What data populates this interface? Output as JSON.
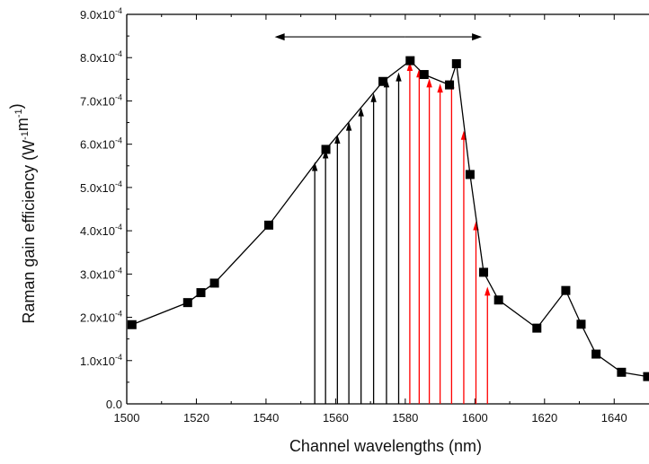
{
  "chart_data": {
    "type": "line",
    "title": "",
    "xlabel": "Channel wavelengths (nm)",
    "ylabel": "Raman gain efficiency (W^-1m^-1)",
    "xlim": [
      1500,
      1650
    ],
    "ylim": [
      0,
      0.0009
    ],
    "grid": false,
    "x_ticks": [
      1500,
      1520,
      1540,
      1560,
      1580,
      1600,
      1620,
      1640
    ],
    "y_ticks": [
      {
        "value": 0.0,
        "label": "0.0"
      },
      {
        "value": 0.0001,
        "label": "1.0x10-4"
      },
      {
        "value": 0.0002,
        "label": "2.0x10-4"
      },
      {
        "value": 0.0003,
        "label": "3.0x10-4"
      },
      {
        "value": 0.0004,
        "label": "4.0x10-4"
      },
      {
        "value": 0.0005,
        "label": "5.0x10-4"
      },
      {
        "value": 0.0006,
        "label": "6.0x10-4"
      },
      {
        "value": 0.0007,
        "label": "7.0x10-4"
      },
      {
        "value": 0.0008,
        "label": "8.0x10-4"
      },
      {
        "value": 0.0009,
        "label": "9.0x10-4"
      }
    ],
    "series": [
      {
        "marker": "square",
        "color": "#000000",
        "points": [
          [
            1501.5,
            0.000183
          ],
          [
            1517.5,
            0.000234
          ],
          [
            1521.3,
            0.000257
          ],
          [
            1525.2,
            0.000279
          ],
          [
            1540.8,
            0.000413
          ],
          [
            1557.2,
            0.000588
          ],
          [
            1573.6,
            0.000745
          ],
          [
            1581.4,
            0.000793
          ],
          [
            1585.4,
            0.000761
          ],
          [
            1592.7,
            0.000737
          ],
          [
            1594.7,
            0.000786
          ],
          [
            1598.6,
            0.00053
          ],
          [
            1602.5,
            0.000304
          ],
          [
            1606.8,
            0.00024
          ],
          [
            1617.8,
            0.000175
          ],
          [
            1626.1,
            0.000262
          ],
          [
            1630.5,
            0.000184
          ],
          [
            1634.8,
            0.000115
          ],
          [
            1642.1,
            7.3e-05
          ],
          [
            1649.6,
            6.3e-05
          ]
        ]
      }
    ],
    "channel_arrows": [
      {
        "wavelength": 1554.0,
        "gain": 0.000559,
        "color": "#000000"
      },
      {
        "wavelength": 1557.1,
        "gain": 0.000588,
        "color": "#000000"
      },
      {
        "wavelength": 1560.5,
        "gain": 0.000622,
        "color": "#000000"
      },
      {
        "wavelength": 1563.8,
        "gain": 0.000652,
        "color": "#000000"
      },
      {
        "wavelength": 1567.3,
        "gain": 0.000685,
        "color": "#000000"
      },
      {
        "wavelength": 1570.9,
        "gain": 0.000718,
        "color": "#000000"
      },
      {
        "wavelength": 1574.6,
        "gain": 0.000752,
        "color": "#000000"
      },
      {
        "wavelength": 1578.1,
        "gain": 0.000766,
        "color": "#000000"
      },
      {
        "wavelength": 1581.3,
        "gain": 0.00079,
        "color": "#ff0000"
      },
      {
        "wavelength": 1584.0,
        "gain": 0.000775,
        "color": "#ff0000"
      },
      {
        "wavelength": 1586.9,
        "gain": 0.000752,
        "color": "#ff0000"
      },
      {
        "wavelength": 1590.0,
        "gain": 0.00074,
        "color": "#ff0000"
      },
      {
        "wavelength": 1593.3,
        "gain": 0.00075,
        "color": "#ff0000"
      },
      {
        "wavelength": 1596.8,
        "gain": 0.000631,
        "color": "#ff0000"
      },
      {
        "wavelength": 1600.3,
        "gain": 0.000422,
        "color": "#ff0000"
      },
      {
        "wavelength": 1603.6,
        "gain": 0.000271,
        "color": "#ff0000"
      }
    ],
    "direction_arrows": [
      {
        "from": 1580.0,
        "to": 1542.5,
        "gain": 0.000848,
        "color": "#000000"
      },
      {
        "from": 1580.0,
        "to": 1602.0,
        "gain": 0.000848,
        "color": "#000000"
      }
    ]
  }
}
